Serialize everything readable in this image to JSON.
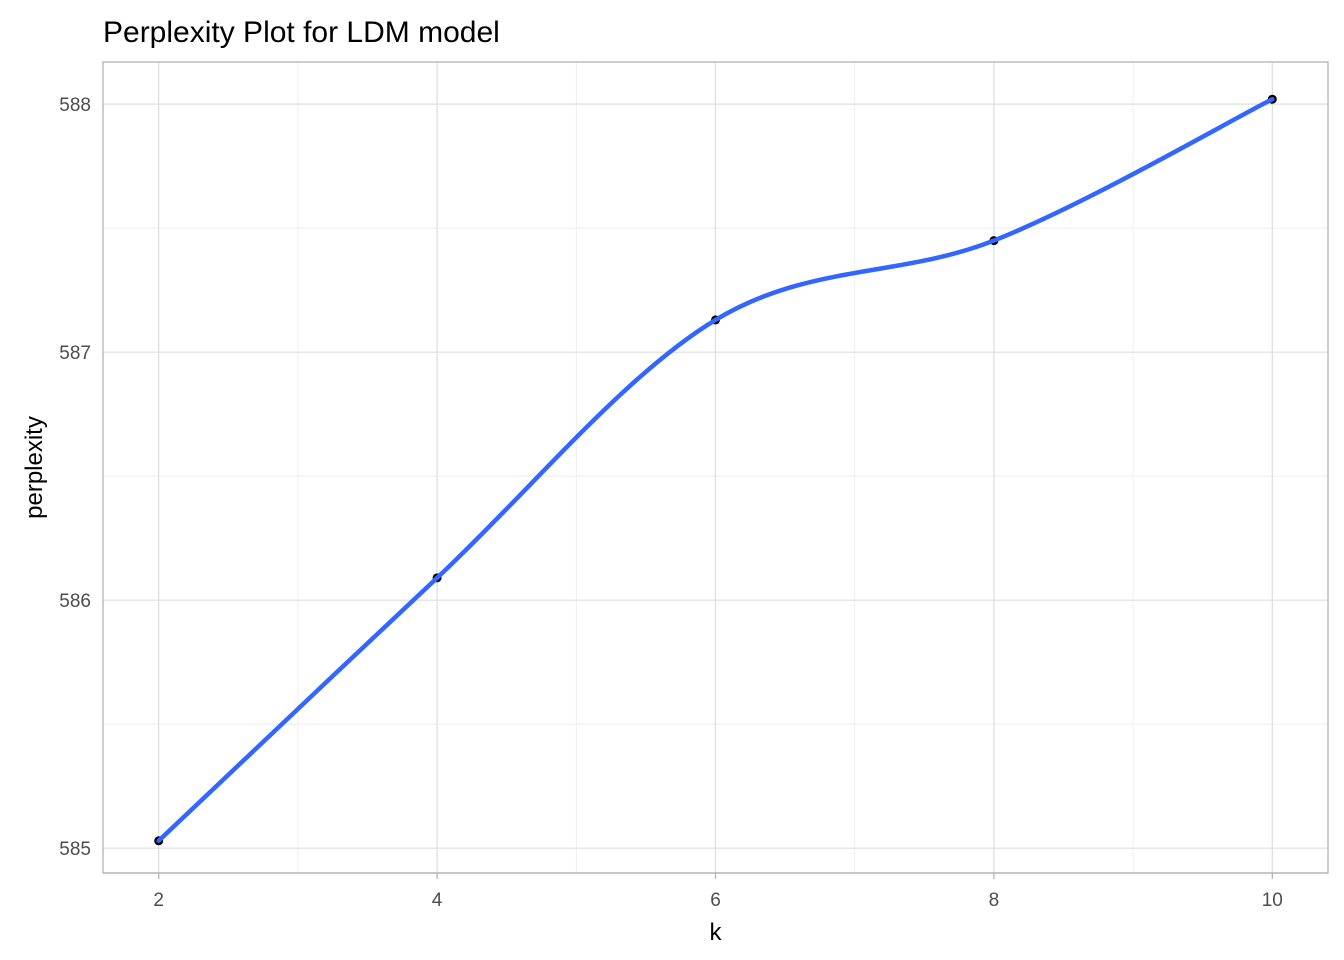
{
  "chart_data": {
    "type": "line",
    "title": "Perplexity Plot for LDM model",
    "xlabel": "k",
    "ylabel": "perplexity",
    "xlim": [
      1.6,
      10.4
    ],
    "ylim": [
      584.9,
      588.17
    ],
    "x_ticks": [
      2,
      4,
      6,
      8,
      10
    ],
    "y_ticks": [
      585,
      586,
      587,
      588
    ],
    "grid": true,
    "legend": "none",
    "series": [
      {
        "x": [
          2,
          4,
          6,
          8,
          10
        ],
        "y": [
          585.03,
          586.09,
          587.13,
          587.45,
          588.02
        ],
        "line_color": "#3366ff",
        "point_color": "#000000",
        "smooth": true
      }
    ]
  }
}
